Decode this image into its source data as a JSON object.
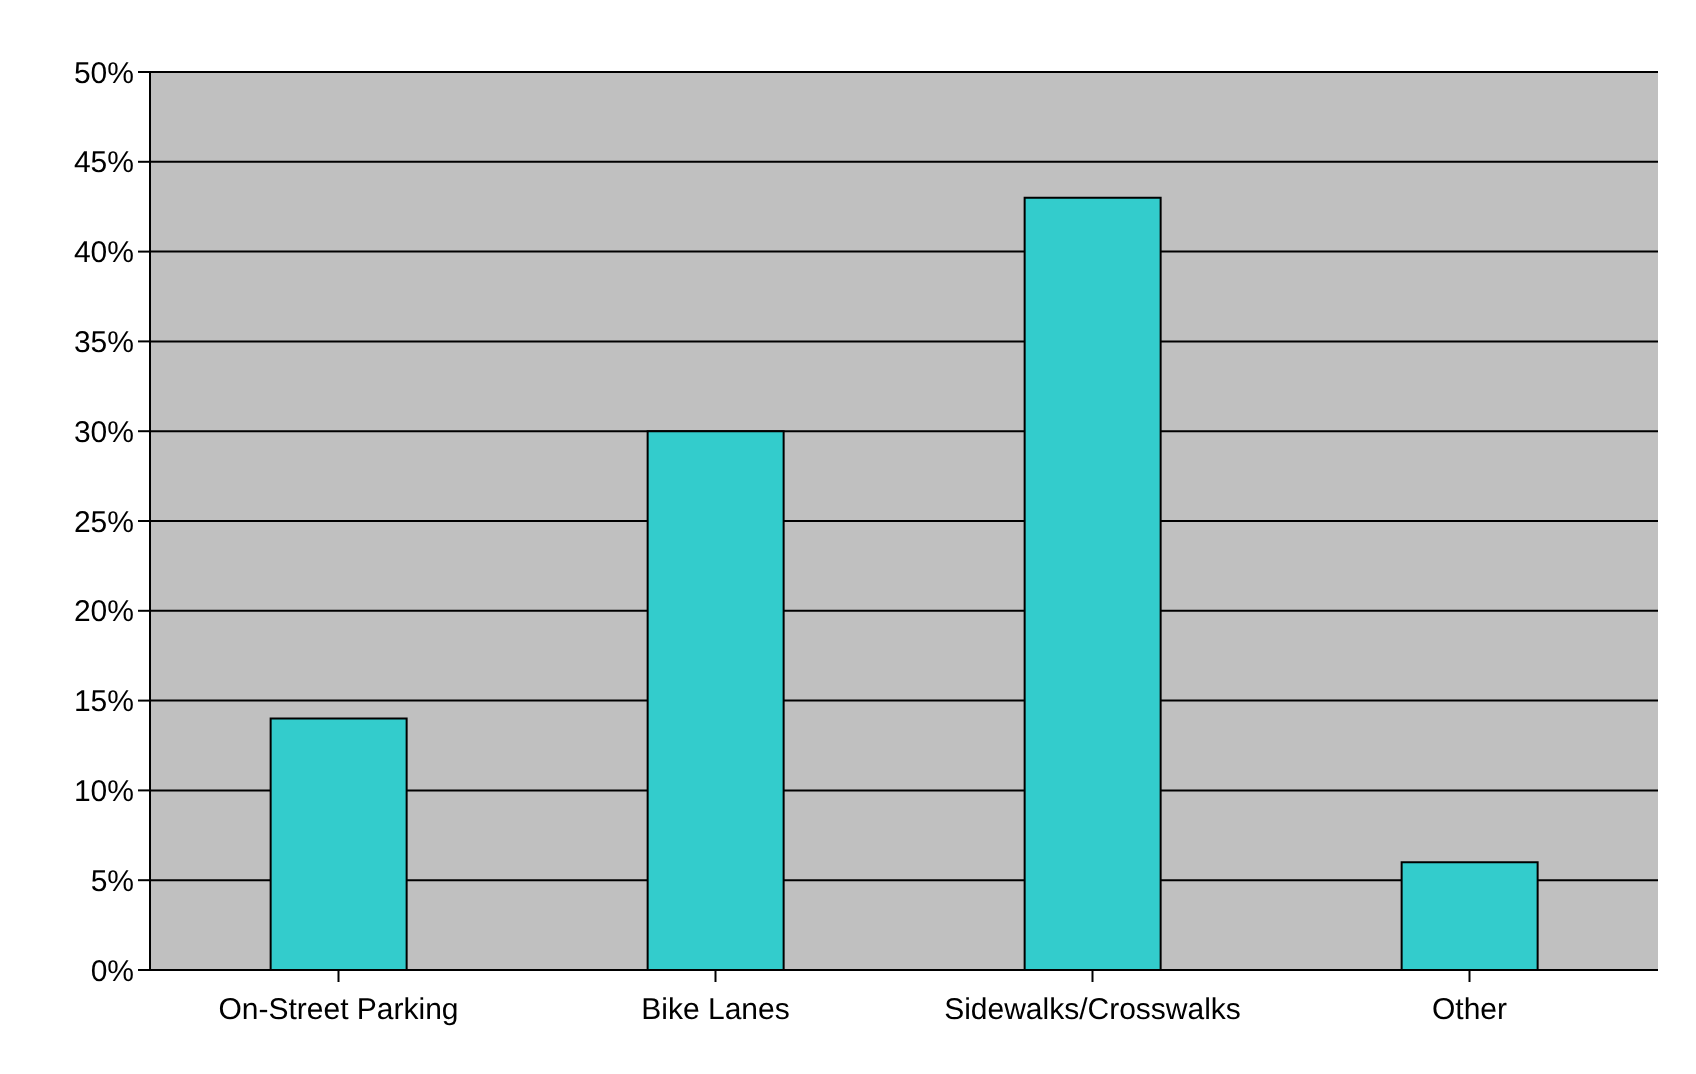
{
  "chart_data": {
    "type": "bar",
    "categories": [
      "On-Street Parking",
      "Bike Lanes",
      "Sidewalks/Crosswalks",
      "Other"
    ],
    "values": [
      14,
      30,
      43,
      6
    ],
    "color": "#33cccc",
    "ylim": [
      0,
      50
    ],
    "yticks": [
      {
        "value": 0,
        "label": "0%"
      },
      {
        "value": 5,
        "label": "5%"
      },
      {
        "value": 10,
        "label": "10%"
      },
      {
        "value": 15,
        "label": "15%"
      },
      {
        "value": 20,
        "label": "20%"
      },
      {
        "value": 25,
        "label": "25%"
      },
      {
        "value": 30,
        "label": "30%"
      },
      {
        "value": 35,
        "label": "35%"
      },
      {
        "value": 40,
        "label": "40%"
      },
      {
        "value": 45,
        "label": "45%"
      },
      {
        "value": 50,
        "label": "50%"
      }
    ],
    "grid": "y"
  }
}
